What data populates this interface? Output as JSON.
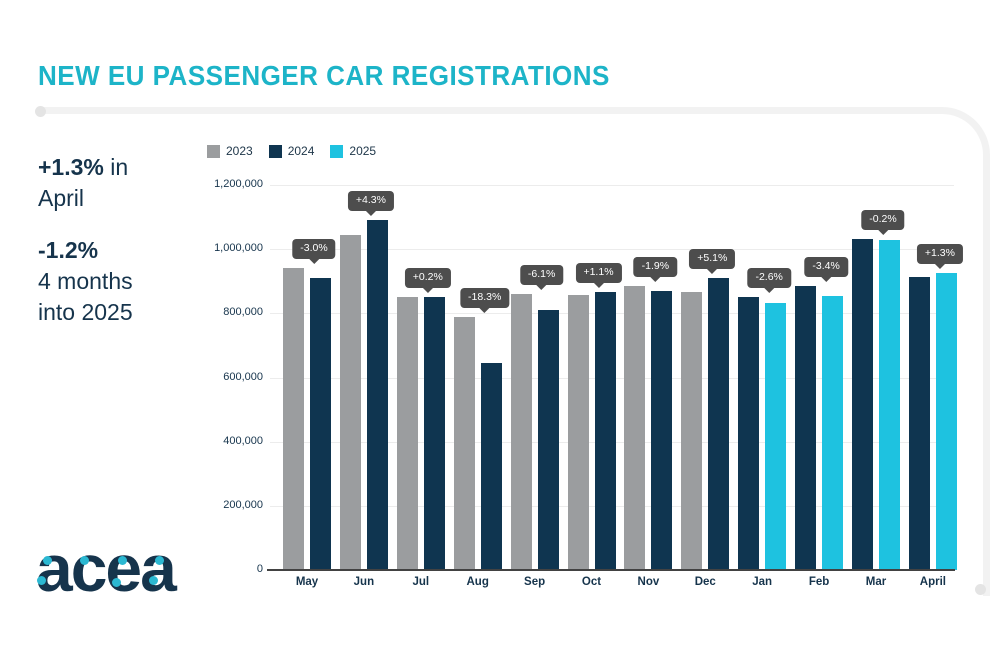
{
  "page": {
    "title": "NEW EU PASSENGER CAR REGISTRATIONS"
  },
  "highlights": [
    {
      "bold": "+1.3%",
      "text": " in April"
    },
    {
      "bold": "-1.2%",
      "text": "4 months into 2025"
    }
  ],
  "logo": {
    "text": "acea"
  },
  "colors": {
    "accent_cyan": "#1db4c8",
    "text_navy": "#16344c",
    "bar_2023": "#9b9d9f",
    "bar_2024": "#0f3550",
    "bar_2025": "#1ec2e0",
    "tooltip_bg": "#4d4d4d"
  },
  "chart_data": {
    "type": "bar",
    "title": "NEW EU PASSENGER CAR REGISTRATIONS",
    "xlabel": "",
    "ylabel": "",
    "ylim": [
      0,
      1200000
    ],
    "ytick_interval": 200000,
    "yticks": [
      "0",
      "200,000",
      "400,000",
      "600,000",
      "800,000",
      "1,000,000",
      "1,200,000"
    ],
    "grid": true,
    "legend_position": "top-left",
    "legend": [
      {
        "label": "2023",
        "color": "#9b9d9f"
      },
      {
        "label": "2024",
        "color": "#0f3550"
      },
      {
        "label": "2025",
        "color": "#1ec2e0"
      }
    ],
    "months": [
      {
        "label": "May",
        "bars": [
          {
            "year": "2023",
            "value": 940000
          },
          {
            "year": "2024",
            "value": 911000
          }
        ],
        "change": "-3.0%"
      },
      {
        "label": "Jun",
        "bars": [
          {
            "year": "2023",
            "value": 1045000
          },
          {
            "year": "2024",
            "value": 1090000
          }
        ],
        "change": "+4.3%"
      },
      {
        "label": "Jul",
        "bars": [
          {
            "year": "2023",
            "value": 850000
          },
          {
            "year": "2024",
            "value": 852000
          }
        ],
        "change": "+0.2%"
      },
      {
        "label": "Aug",
        "bars": [
          {
            "year": "2023",
            "value": 788000
          },
          {
            "year": "2024",
            "value": 644000
          }
        ],
        "change": "-18.3%"
      },
      {
        "label": "Sep",
        "bars": [
          {
            "year": "2023",
            "value": 861000
          },
          {
            "year": "2024",
            "value": 809000
          }
        ],
        "change": "-6.1%"
      },
      {
        "label": "Oct",
        "bars": [
          {
            "year": "2023",
            "value": 857000
          },
          {
            "year": "2024",
            "value": 866000
          }
        ],
        "change": "+1.1%"
      },
      {
        "label": "Nov",
        "bars": [
          {
            "year": "2023",
            "value": 886000
          },
          {
            "year": "2024",
            "value": 870000
          }
        ],
        "change": "-1.9%"
      },
      {
        "label": "Dec",
        "bars": [
          {
            "year": "2023",
            "value": 867000
          },
          {
            "year": "2024",
            "value": 911000
          }
        ],
        "change": "+5.1%"
      },
      {
        "label": "Jan",
        "bars": [
          {
            "year": "2024",
            "value": 852000
          },
          {
            "year": "2025",
            "value": 831000
          }
        ],
        "change": "-2.6%"
      },
      {
        "label": "Feb",
        "bars": [
          {
            "year": "2024",
            "value": 884000
          },
          {
            "year": "2025",
            "value": 854000
          }
        ],
        "change": "-3.4%"
      },
      {
        "label": "Mar",
        "bars": [
          {
            "year": "2024",
            "value": 1032000
          },
          {
            "year": "2025",
            "value": 1030000
          }
        ],
        "change": "-0.2%"
      },
      {
        "label": "April",
        "bars": [
          {
            "year": "2024",
            "value": 914000
          },
          {
            "year": "2025",
            "value": 925000
          }
        ],
        "change": "+1.3%"
      }
    ]
  }
}
